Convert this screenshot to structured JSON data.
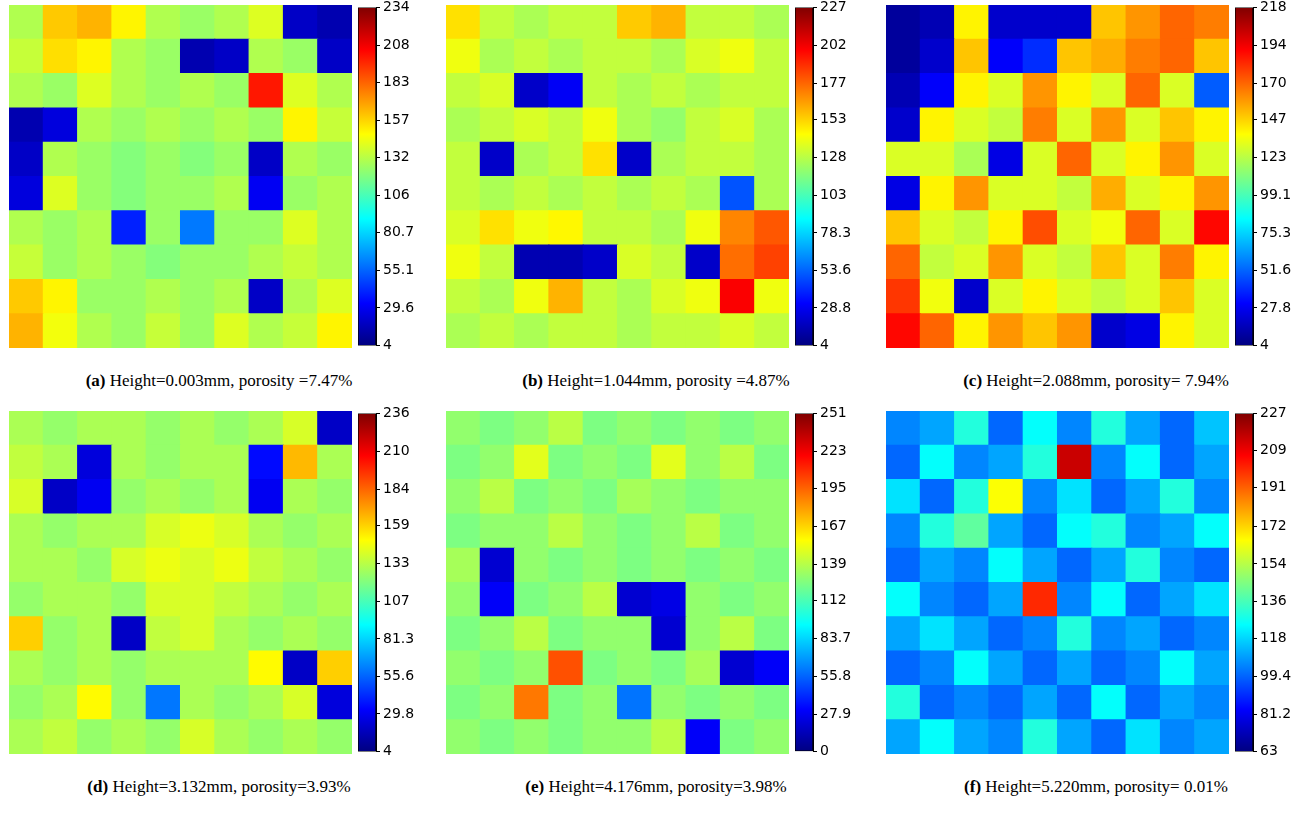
{
  "chart_data": [
    {
      "type": "heatmap",
      "panel": "(a)",
      "title": "Height=0.003mm, porosity =7.47%",
      "tick_labels": false,
      "color_range": [
        4,
        234
      ],
      "color_ticks": [
        234,
        208,
        183,
        157,
        132,
        106,
        80.7,
        55.1,
        29.6,
        4
      ],
      "cells": [
        [
          130,
          160,
          165,
          150,
          130,
          125,
          130,
          140,
          20,
          15
        ],
        [
          135,
          155,
          150,
          130,
          125,
          15,
          20,
          130,
          125,
          20
        ],
        [
          130,
          125,
          140,
          130,
          125,
          130,
          125,
          200,
          140,
          130
        ],
        [
          15,
          25,
          130,
          125,
          130,
          125,
          130,
          125,
          150,
          135
        ],
        [
          20,
          130,
          125,
          120,
          125,
          120,
          125,
          20,
          130,
          125
        ],
        [
          25,
          140,
          125,
          120,
          125,
          125,
          130,
          30,
          125,
          130
        ],
        [
          130,
          125,
          130,
          40,
          125,
          60,
          125,
          125,
          140,
          130
        ],
        [
          135,
          125,
          130,
          125,
          120,
          125,
          125,
          130,
          135,
          130
        ],
        [
          160,
          150,
          125,
          125,
          130,
          125,
          130,
          20,
          130,
          140
        ],
        [
          165,
          145,
          130,
          125,
          135,
          125,
          140,
          130,
          135,
          150
        ]
      ]
    },
    {
      "type": "heatmap",
      "panel": "(b)",
      "title": "Height=1.044mm, porosity =4.87%",
      "tick_labels": false,
      "color_range": [
        4,
        227
      ],
      "color_ticks": [
        227,
        202,
        177,
        153,
        128,
        103,
        78.3,
        53.6,
        28.8,
        4
      ],
      "cells": [
        [
          150,
          130,
          125,
          130,
          130,
          155,
          160,
          130,
          130,
          125
        ],
        [
          140,
          125,
          130,
          125,
          130,
          130,
          125,
          135,
          140,
          130
        ],
        [
          130,
          135,
          20,
          30,
          130,
          125,
          130,
          125,
          130,
          130
        ],
        [
          125,
          130,
          135,
          130,
          140,
          125,
          120,
          130,
          135,
          125
        ],
        [
          130,
          20,
          125,
          130,
          150,
          20,
          125,
          130,
          130,
          125
        ],
        [
          130,
          125,
          130,
          125,
          130,
          125,
          130,
          125,
          50,
          125
        ],
        [
          135,
          150,
          140,
          145,
          130,
          130,
          125,
          140,
          170,
          180
        ],
        [
          140,
          130,
          15,
          15,
          20,
          135,
          130,
          20,
          175,
          185
        ],
        [
          130,
          125,
          140,
          160,
          130,
          125,
          135,
          140,
          200,
          140
        ],
        [
          125,
          130,
          125,
          130,
          130,
          125,
          130,
          130,
          135,
          130
        ]
      ]
    },
    {
      "type": "heatmap",
      "panel": "(c)",
      "title": "Height=2.088mm, porosity= 7.94%",
      "tick_labels": false,
      "color_range": [
        4,
        218
      ],
      "color_ticks": [
        218,
        194,
        170,
        147,
        123,
        99.1,
        75.3,
        51.6,
        27.8,
        4
      ],
      "cells": [
        [
          10,
          15,
          140,
          20,
          20,
          20,
          150,
          160,
          170,
          165
        ],
        [
          10,
          20,
          150,
          30,
          40,
          150,
          155,
          165,
          170,
          150
        ],
        [
          15,
          30,
          140,
          130,
          160,
          140,
          130,
          170,
          130,
          50
        ],
        [
          20,
          140,
          130,
          125,
          165,
          130,
          160,
          130,
          150,
          140
        ],
        [
          130,
          130,
          120,
          25,
          130,
          170,
          130,
          140,
          160,
          130
        ],
        [
          25,
          140,
          160,
          130,
          130,
          125,
          155,
          130,
          140,
          160
        ],
        [
          150,
          130,
          125,
          140,
          175,
          130,
          135,
          170,
          130,
          190
        ],
        [
          170,
          125,
          130,
          160,
          130,
          125,
          150,
          130,
          165,
          140
        ],
        [
          180,
          135,
          20,
          130,
          140,
          130,
          125,
          130,
          150,
          130
        ],
        [
          190,
          170,
          140,
          160,
          150,
          160,
          20,
          25,
          140,
          130
        ]
      ]
    },
    {
      "type": "heatmap",
      "panel": "(d)",
      "title": "Height=3.132mm, porosity=3.93%",
      "tick_labels": false,
      "color_range": [
        4,
        236
      ],
      "color_ticks": [
        236,
        210,
        184,
        159,
        133,
        107,
        81.3,
        55.6,
        29.8,
        4
      ],
      "cells": [
        [
          130,
          125,
          130,
          130,
          125,
          130,
          125,
          130,
          140,
          20
        ],
        [
          135,
          130,
          25,
          130,
          125,
          130,
          130,
          35,
          165,
          130
        ],
        [
          140,
          20,
          30,
          125,
          130,
          125,
          130,
          30,
          130,
          125
        ],
        [
          130,
          125,
          130,
          130,
          140,
          145,
          140,
          130,
          125,
          130
        ],
        [
          130,
          130,
          125,
          140,
          145,
          140,
          145,
          135,
          130,
          125
        ],
        [
          125,
          130,
          130,
          125,
          140,
          140,
          135,
          130,
          125,
          130
        ],
        [
          160,
          125,
          130,
          20,
          135,
          140,
          130,
          125,
          130,
          125
        ],
        [
          130,
          125,
          130,
          125,
          130,
          130,
          130,
          150,
          20,
          160
        ],
        [
          125,
          130,
          150,
          125,
          60,
          130,
          125,
          130,
          140,
          25
        ],
        [
          130,
          135,
          125,
          130,
          125,
          140,
          130,
          125,
          130,
          125
        ]
      ]
    },
    {
      "type": "heatmap",
      "panel": "(e)",
      "title": "Height=4.176mm, porosity=3.98%",
      "tick_labels": false,
      "color_range": [
        0,
        251
      ],
      "color_ticks": [
        251,
        223,
        195,
        167,
        139,
        112,
        83.7,
        55.8,
        27.9,
        0
      ],
      "cells": [
        [
          130,
          125,
          130,
          140,
          125,
          130,
          125,
          130,
          125,
          130
        ],
        [
          125,
          130,
          150,
          125,
          130,
          125,
          150,
          130,
          140,
          125
        ],
        [
          130,
          140,
          125,
          130,
          125,
          135,
          130,
          125,
          130,
          130
        ],
        [
          125,
          130,
          130,
          140,
          130,
          125,
          130,
          140,
          125,
          130
        ],
        [
          135,
          20,
          130,
          125,
          130,
          125,
          130,
          125,
          130,
          125
        ],
        [
          130,
          30,
          125,
          130,
          140,
          20,
          25,
          130,
          125,
          130
        ],
        [
          125,
          130,
          140,
          125,
          130,
          130,
          20,
          130,
          140,
          125
        ],
        [
          130,
          125,
          130,
          200,
          125,
          130,
          125,
          135,
          20,
          30
        ],
        [
          125,
          130,
          190,
          125,
          130,
          60,
          130,
          125,
          130,
          125
        ],
        [
          130,
          125,
          130,
          125,
          130,
          130,
          140,
          30,
          125,
          130
        ]
      ]
    },
    {
      "type": "heatmap",
      "panel": "(f)",
      "title": "Height=5.220mm, porosity= 0.01%",
      "tick_labels": false,
      "color_range": [
        63,
        227
      ],
      "color_ticks": [
        227,
        209,
        191,
        172,
        154,
        136,
        118,
        99.4,
        81.2,
        63
      ],
      "cells": [
        [
          105,
          110,
          130,
          100,
          125,
          105,
          130,
          110,
          100,
          115
        ],
        [
          100,
          125,
          105,
          110,
          130,
          215,
          105,
          125,
          100,
          110
        ],
        [
          120,
          100,
          130,
          165,
          105,
          120,
          100,
          110,
          130,
          105
        ],
        [
          105,
          130,
          140,
          110,
          100,
          125,
          130,
          105,
          110,
          125
        ],
        [
          100,
          110,
          105,
          125,
          110,
          100,
          110,
          130,
          105,
          100
        ],
        [
          125,
          105,
          100,
          110,
          200,
          105,
          125,
          100,
          110,
          120
        ],
        [
          110,
          120,
          110,
          100,
          105,
          130,
          105,
          110,
          100,
          105
        ],
        [
          100,
          105,
          125,
          110,
          100,
          110,
          100,
          105,
          125,
          110
        ],
        [
          130,
          100,
          105,
          100,
          110,
          100,
          125,
          100,
          110,
          105
        ],
        [
          110,
          125,
          110,
          105,
          130,
          110,
          100,
          120,
          105,
          110
        ]
      ]
    }
  ]
}
